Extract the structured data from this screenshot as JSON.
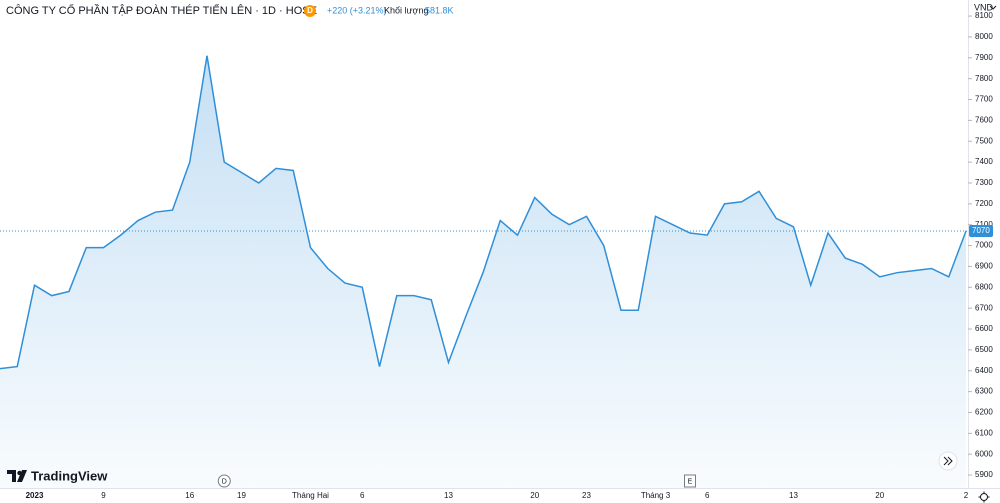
{
  "chart_data": {
    "type": "line",
    "title": "CÔNG TY CỔ PHẦN TẬP ĐOÀN THÉP TIẾN LÊN · 1D · HOSE",
    "badge": "D",
    "change": "+220 (+3.21%)",
    "volume_label": "Khối lượng",
    "volume": "581.8K",
    "currency": "VND",
    "brand": "TradingView",
    "categories": [
      "",
      "",
      "2023",
      "",
      "",
      "",
      "9",
      "",
      "",
      "",
      "",
      "16",
      "",
      "",
      "19",
      "",
      "",
      "",
      "Tháng Hai",
      "",
      "",
      "6",
      "",
      "",
      "",
      "",
      "13",
      "",
      "",
      "",
      "",
      "20",
      "",
      "",
      "23",
      "",
      "",
      "",
      "Tháng 3",
      "",
      "",
      "6",
      "",
      "",
      "",
      "",
      "13",
      "",
      "",
      "",
      "",
      "20",
      "",
      "",
      "",
      "",
      "2"
    ],
    "series": [
      {
        "name": "",
        "color": "#2f8fd8",
        "values": [
          6410,
          6420,
          6810,
          6760,
          6780,
          6990,
          6990,
          7050,
          7120,
          7160,
          7170,
          7400,
          7910,
          7400,
          7350,
          7300,
          7370,
          7360,
          6990,
          6890,
          6820,
          6800,
          6420,
          6760,
          6760,
          6740,
          6440,
          6660,
          6870,
          7120,
          7050,
          7230,
          7150,
          7100,
          7140,
          7000,
          6690,
          6690,
          7140,
          7100,
          7060,
          7050,
          7200,
          7210,
          7260,
          7130,
          7090,
          6810,
          7060,
          6940,
          6910,
          6850,
          6870,
          6880,
          6890,
          6850,
          7070
        ]
      }
    ],
    "events": [
      {
        "label": "D",
        "at": 13
      },
      {
        "label": "E",
        "at": 40
      }
    ],
    "ylim": [
      5838,
      8177
    ],
    "yticks": [
      5900,
      6000,
      6100,
      6200,
      6300,
      6400,
      6500,
      6600,
      6700,
      6800,
      6900,
      7000,
      7100,
      7200,
      7300,
      7400,
      7500,
      7600,
      7700,
      7800,
      7900,
      8000,
      8100
    ]
  }
}
